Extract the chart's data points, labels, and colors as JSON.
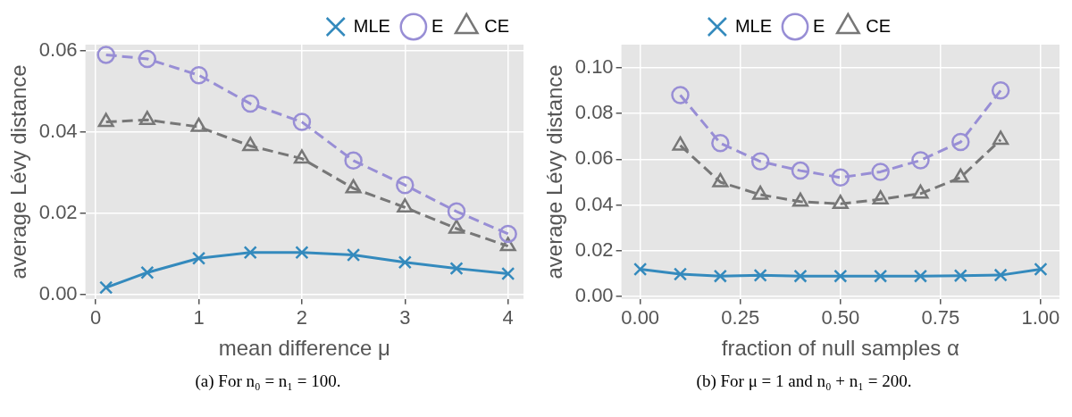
{
  "chart_data": [
    {
      "type": "line",
      "xlabel": "mean difference μ",
      "ylabel": "average Lévy distance",
      "annotations": [
        "(a) For n₀ = n₁ = 100."
      ],
      "x": [
        0.1,
        0.5,
        1,
        1.5,
        2,
        2.5,
        3,
        3.5,
        4
      ],
      "series": [
        {
          "name": "MLE",
          "color": "#348abd",
          "marker": "cross",
          "line_style": "solid",
          "values": [
            0.0018,
            0.0055,
            0.009,
            0.0104,
            0.0104,
            0.0098,
            0.008,
            0.0065,
            0.0052
          ]
        },
        {
          "name": "E",
          "color": "#988ed5",
          "marker": "circle",
          "line_style": "dashed",
          "values": [
            0.059,
            0.058,
            0.054,
            0.047,
            0.0425,
            0.033,
            0.027,
            0.0205,
            0.015
          ]
        },
        {
          "name": "CE",
          "color": "#777777",
          "marker": "triangle",
          "line_style": "dashed",
          "values": [
            0.0425,
            0.043,
            0.0413,
            0.0366,
            0.0335,
            0.0262,
            0.0215,
            0.0163,
            0.012
          ]
        }
      ],
      "xlim": [
        -0.1,
        4.15
      ],
      "xticks": [
        0,
        1,
        2,
        3,
        4
      ],
      "ylim": [
        -0.001,
        0.0615
      ],
      "yticks": [
        {
          "value": 0,
          "label": "0.00"
        },
        {
          "value": 0.02,
          "label": "0.02"
        },
        {
          "value": 0.04,
          "label": "0.04"
        },
        {
          "value": 0.06,
          "label": "0.06"
        }
      ],
      "grid": true,
      "legend": "top right"
    },
    {
      "type": "line",
      "xlabel": "fraction of null samples α",
      "ylabel": "average Lévy distance",
      "annotations": [
        "(b) For μ = 1 and n₀ + n₁ = 200."
      ],
      "x": [
        0,
        0.1,
        0.2,
        0.3,
        0.4,
        0.5,
        0.6,
        0.7,
        0.8,
        0.9,
        1
      ],
      "series": [
        {
          "name": "MLE",
          "color": "#348abd",
          "marker": "cross",
          "line_style": "solid",
          "values": [
            0.012,
            0.0098,
            0.009,
            0.0093,
            0.009,
            0.009,
            0.009,
            0.009,
            0.0092,
            0.0094,
            0.012
          ]
        },
        {
          "name": "E",
          "color": "#988ed5",
          "marker": "circle",
          "line_style": "dashed",
          "values": [
            null,
            0.088,
            0.067,
            0.059,
            0.055,
            0.052,
            0.0545,
            0.0595,
            0.0675,
            0.09,
            null
          ]
        },
        {
          "name": "CE",
          "color": "#777777",
          "marker": "triangle",
          "line_style": "dashed",
          "values": [
            null,
            0.066,
            0.05,
            0.0445,
            0.0415,
            0.0405,
            0.0425,
            0.045,
            0.052,
            0.0685,
            null
          ]
        }
      ],
      "xlim": [
        -0.047,
        1.047
      ],
      "xticks": [
        {
          "value": 0,
          "label": "0.00"
        },
        {
          "value": 0.25,
          "label": "0.25"
        },
        {
          "value": 0.5,
          "label": "0.50"
        },
        {
          "value": 0.75,
          "label": "0.75"
        },
        {
          "value": 1,
          "label": "1.00"
        }
      ],
      "ylim": [
        -0.001,
        0.11
      ],
      "yticks": [
        {
          "value": 0,
          "label": "0.00"
        },
        {
          "value": 0.02,
          "label": "0.02"
        },
        {
          "value": 0.04,
          "label": "0.04"
        },
        {
          "value": 0.06,
          "label": "0.06"
        },
        {
          "value": 0.08,
          "label": "0.08"
        },
        {
          "value": 0.1,
          "label": "0.10"
        }
      ],
      "grid": true,
      "legend": "top"
    }
  ]
}
